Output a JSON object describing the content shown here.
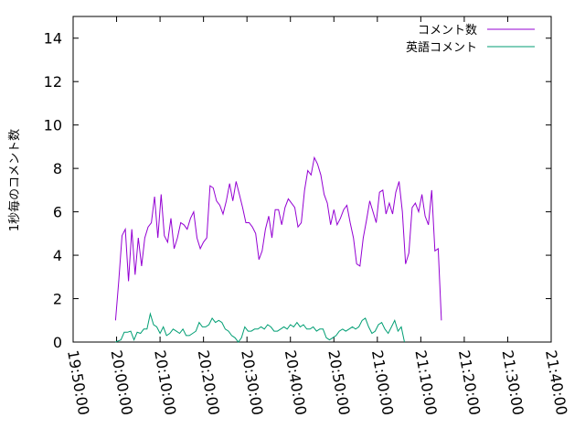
{
  "chart_data": {
    "type": "line",
    "title": "",
    "xlabel": "",
    "ylabel": "1秒毎のコメント数",
    "xlim": [
      "19:50:00",
      "21:40:00"
    ],
    "ylim": [
      0,
      15
    ],
    "x_ticks": [
      "19:50:00",
      "20:00:00",
      "20:10:00",
      "20:20:00",
      "20:30:00",
      "20:40:00",
      "20:50:00",
      "21:00:00",
      "21:10:00",
      "21:20:00",
      "21:30:00",
      "21:40:00"
    ],
    "y_ticks": [
      "0",
      "2",
      "4",
      "6",
      "8",
      "10",
      "12",
      "14"
    ],
    "grid": false,
    "legend_position": "top-right",
    "series": [
      {
        "name": "コメント数",
        "color": "#9400d3",
        "points": [
          [
            "19:59:45",
            1.0
          ],
          [
            "20:00:30",
            2.8
          ],
          [
            "20:01:15",
            4.9
          ],
          [
            "20:02:00",
            5.2
          ],
          [
            "20:02:45",
            2.8
          ],
          [
            "20:03:30",
            5.2
          ],
          [
            "20:04:15",
            3.1
          ],
          [
            "20:05:00",
            4.8
          ],
          [
            "20:05:45",
            3.5
          ],
          [
            "20:06:30",
            4.8
          ],
          [
            "20:07:15",
            5.3
          ],
          [
            "20:08:00",
            5.5
          ],
          [
            "20:08:45",
            6.7
          ],
          [
            "20:09:30",
            4.8
          ],
          [
            "20:10:15",
            6.8
          ],
          [
            "20:11:00",
            4.9
          ],
          [
            "20:11:45",
            4.6
          ],
          [
            "20:12:30",
            5.7
          ],
          [
            "20:13:15",
            4.3
          ],
          [
            "20:14:00",
            4.8
          ],
          [
            "20:14:45",
            5.5
          ],
          [
            "20:15:30",
            5.4
          ],
          [
            "20:16:15",
            5.2
          ],
          [
            "20:17:00",
            5.7
          ],
          [
            "20:17:45",
            6.0
          ],
          [
            "20:18:30",
            4.8
          ],
          [
            "20:19:15",
            4.3
          ],
          [
            "20:20:00",
            4.6
          ],
          [
            "20:20:45",
            4.8
          ],
          [
            "20:21:30",
            7.2
          ],
          [
            "20:22:15",
            7.1
          ],
          [
            "20:23:00",
            6.5
          ],
          [
            "20:23:45",
            6.3
          ],
          [
            "20:24:30",
            5.9
          ],
          [
            "20:25:15",
            6.5
          ],
          [
            "20:26:00",
            7.3
          ],
          [
            "20:26:45",
            6.5
          ],
          [
            "20:27:30",
            7.4
          ],
          [
            "20:28:15",
            6.8
          ],
          [
            "20:29:00",
            6.2
          ],
          [
            "20:29:45",
            5.5
          ],
          [
            "20:30:30",
            5.5
          ],
          [
            "20:31:15",
            5.3
          ],
          [
            "20:32:00",
            5.0
          ],
          [
            "20:32:45",
            3.8
          ],
          [
            "20:33:30",
            4.2
          ],
          [
            "20:34:15",
            5.2
          ],
          [
            "20:35:00",
            5.8
          ],
          [
            "20:35:45",
            4.8
          ],
          [
            "20:36:30",
            6.1
          ],
          [
            "20:37:15",
            6.1
          ],
          [
            "20:38:00",
            5.4
          ],
          [
            "20:38:45",
            6.2
          ],
          [
            "20:39:30",
            6.6
          ],
          [
            "20:40:15",
            6.4
          ],
          [
            "20:41:00",
            6.2
          ],
          [
            "20:41:45",
            5.3
          ],
          [
            "20:42:30",
            5.5
          ],
          [
            "20:43:15",
            7.0
          ],
          [
            "20:44:00",
            7.9
          ],
          [
            "20:44:45",
            7.7
          ],
          [
            "20:45:30",
            8.5
          ],
          [
            "20:46:15",
            8.2
          ],
          [
            "20:47:00",
            7.7
          ],
          [
            "20:47:45",
            6.8
          ],
          [
            "20:48:30",
            6.4
          ],
          [
            "20:49:15",
            5.4
          ],
          [
            "20:50:00",
            6.1
          ],
          [
            "20:50:45",
            5.4
          ],
          [
            "20:51:30",
            5.7
          ],
          [
            "20:52:15",
            6.1
          ],
          [
            "20:53:00",
            6.3
          ],
          [
            "20:53:45",
            5.5
          ],
          [
            "20:54:30",
            4.8
          ],
          [
            "20:55:15",
            3.6
          ],
          [
            "20:56:00",
            3.5
          ],
          [
            "20:56:45",
            4.8
          ],
          [
            "20:57:30",
            5.6
          ],
          [
            "20:58:15",
            6.5
          ],
          [
            "20:59:00",
            6.0
          ],
          [
            "20:59:45",
            5.5
          ],
          [
            "21:00:30",
            6.9
          ],
          [
            "21:01:15",
            7.0
          ],
          [
            "21:02:00",
            5.9
          ],
          [
            "21:02:45",
            6.4
          ],
          [
            "21:03:30",
            5.9
          ],
          [
            "21:04:15",
            6.9
          ],
          [
            "21:05:00",
            7.4
          ],
          [
            "21:05:45",
            6.0
          ],
          [
            "21:06:30",
            3.6
          ],
          [
            "21:07:15",
            4.1
          ],
          [
            "21:08:00",
            6.2
          ],
          [
            "21:08:45",
            6.4
          ],
          [
            "21:09:30",
            6.0
          ],
          [
            "21:10:15",
            6.8
          ],
          [
            "21:11:00",
            5.8
          ],
          [
            "21:11:45",
            5.4
          ],
          [
            "21:12:30",
            7.0
          ],
          [
            "21:13:15",
            4.2
          ],
          [
            "21:14:00",
            4.3
          ],
          [
            "21:14:45",
            1.0
          ]
        ]
      },
      {
        "name": "英語コメント",
        "color": "#009e73",
        "points": [
          [
            "19:59:45",
            0.0
          ],
          [
            "20:01:00",
            0.1
          ],
          [
            "20:01:45",
            0.45
          ],
          [
            "20:02:30",
            0.45
          ],
          [
            "20:03:15",
            0.5
          ],
          [
            "20:04:00",
            0.1
          ],
          [
            "20:04:45",
            0.45
          ],
          [
            "20:05:30",
            0.4
          ],
          [
            "20:06:15",
            0.6
          ],
          [
            "20:07:00",
            0.6
          ],
          [
            "20:07:45",
            1.3
          ],
          [
            "20:08:30",
            0.8
          ],
          [
            "20:09:15",
            0.7
          ],
          [
            "20:10:00",
            0.4
          ],
          [
            "20:10:45",
            0.7
          ],
          [
            "20:11:30",
            0.3
          ],
          [
            "20:12:15",
            0.4
          ],
          [
            "20:13:00",
            0.6
          ],
          [
            "20:13:45",
            0.5
          ],
          [
            "20:14:30",
            0.4
          ],
          [
            "20:15:15",
            0.6
          ],
          [
            "20:16:00",
            0.3
          ],
          [
            "20:16:45",
            0.3
          ],
          [
            "20:17:30",
            0.4
          ],
          [
            "20:18:15",
            0.5
          ],
          [
            "20:19:00",
            0.9
          ],
          [
            "20:19:45",
            0.7
          ],
          [
            "20:20:30",
            0.7
          ],
          [
            "20:21:15",
            0.8
          ],
          [
            "20:22:00",
            1.1
          ],
          [
            "20:22:45",
            0.9
          ],
          [
            "20:23:30",
            1.0
          ],
          [
            "20:24:15",
            0.9
          ],
          [
            "20:25:00",
            0.6
          ],
          [
            "20:25:45",
            0.5
          ],
          [
            "20:26:30",
            0.3
          ],
          [
            "20:27:15",
            0.2
          ],
          [
            "20:28:00",
            0.0
          ],
          [
            "20:28:45",
            0.2
          ],
          [
            "20:29:30",
            0.7
          ],
          [
            "20:30:15",
            0.5
          ],
          [
            "20:31:00",
            0.5
          ],
          [
            "20:31:45",
            0.6
          ],
          [
            "20:32:30",
            0.6
          ],
          [
            "20:33:15",
            0.7
          ],
          [
            "20:34:00",
            0.6
          ],
          [
            "20:34:45",
            0.8
          ],
          [
            "20:35:30",
            0.7
          ],
          [
            "20:36:15",
            0.5
          ],
          [
            "20:37:00",
            0.5
          ],
          [
            "20:37:45",
            0.6
          ],
          [
            "20:38:30",
            0.7
          ],
          [
            "20:39:15",
            0.6
          ],
          [
            "20:40:00",
            0.8
          ],
          [
            "20:40:45",
            0.7
          ],
          [
            "20:41:30",
            0.9
          ],
          [
            "20:42:15",
            0.7
          ],
          [
            "20:43:00",
            0.8
          ],
          [
            "20:43:45",
            0.6
          ],
          [
            "20:44:30",
            0.6
          ],
          [
            "20:45:15",
            0.7
          ],
          [
            "20:46:00",
            0.5
          ],
          [
            "20:46:45",
            0.6
          ],
          [
            "20:47:30",
            0.6
          ],
          [
            "20:48:15",
            0.2
          ],
          [
            "20:49:00",
            0.1
          ],
          [
            "20:49:45",
            0.2
          ],
          [
            "20:50:30",
            0.3
          ],
          [
            "20:51:15",
            0.5
          ],
          [
            "20:52:00",
            0.6
          ],
          [
            "20:52:45",
            0.5
          ],
          [
            "20:53:30",
            0.6
          ],
          [
            "20:54:15",
            0.7
          ],
          [
            "20:55:00",
            0.6
          ],
          [
            "20:55:45",
            0.7
          ],
          [
            "20:56:30",
            1.0
          ],
          [
            "20:57:15",
            1.1
          ],
          [
            "20:58:00",
            0.7
          ],
          [
            "20:58:45",
            0.4
          ],
          [
            "20:59:30",
            0.5
          ],
          [
            "21:00:15",
            0.8
          ],
          [
            "21:01:00",
            0.9
          ],
          [
            "21:01:45",
            0.6
          ],
          [
            "21:02:30",
            0.4
          ],
          [
            "21:03:15",
            0.7
          ],
          [
            "21:04:00",
            1.0
          ],
          [
            "21:04:45",
            0.5
          ],
          [
            "21:05:30",
            0.7
          ],
          [
            "21:06:15",
            0.0
          ]
        ]
      }
    ]
  }
}
